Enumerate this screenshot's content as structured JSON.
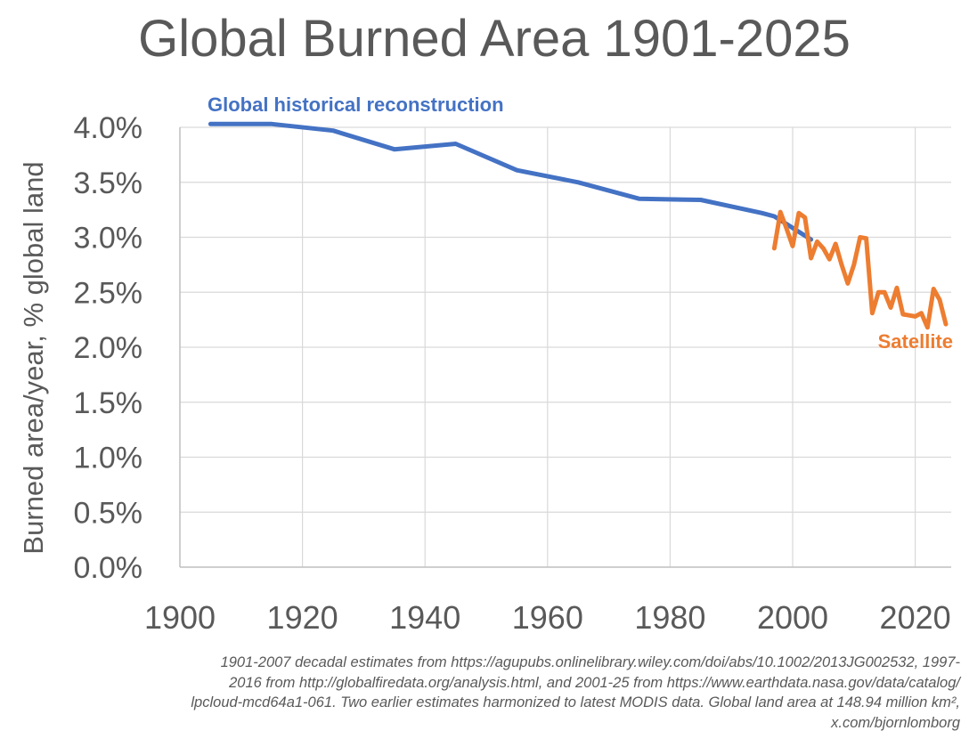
{
  "chart_data": {
    "type": "line",
    "title": "Global Burned Area 1901-2025",
    "xlabel": "",
    "ylabel": "Burned area/year, % global land",
    "xlim": [
      1900,
      2026
    ],
    "ylim": [
      0,
      4
    ],
    "x_ticks": [
      1900,
      1920,
      1940,
      1960,
      1980,
      2000,
      2020
    ],
    "y_ticks": [
      "0.0%",
      "0.5%",
      "1.0%",
      "1.5%",
      "2.0%",
      "2.5%",
      "3.0%",
      "3.5%",
      "4.0%"
    ],
    "y_tick_values": [
      0,
      0.5,
      1.0,
      1.5,
      2.0,
      2.5,
      3.0,
      3.5,
      4.0
    ],
    "grid": true,
    "series": [
      {
        "name": "Global historical reconstruction",
        "color": "#4472c4",
        "x": [
          1905,
          1915,
          1925,
          1935,
          1945,
          1955,
          1965,
          1975,
          1985,
          1995,
          1997,
          2003
        ],
        "values": [
          4.03,
          4.03,
          3.97,
          3.8,
          3.85,
          3.61,
          3.5,
          3.35,
          3.34,
          3.22,
          3.19,
          2.98
        ]
      },
      {
        "name": "Satellite",
        "color": "#ed7d31",
        "x": [
          1997,
          1998,
          1999,
          2000,
          2001,
          2002,
          2003,
          2004,
          2005,
          2006,
          2007,
          2008,
          2009,
          2010,
          2011,
          2012,
          2013,
          2014,
          2015,
          2016,
          2017,
          2018,
          2019,
          2020,
          2021,
          2022,
          2023,
          2024,
          2025
        ],
        "values": [
          2.9,
          3.23,
          3.08,
          2.92,
          3.22,
          3.18,
          2.81,
          2.96,
          2.9,
          2.8,
          2.94,
          2.75,
          2.58,
          2.75,
          3.0,
          2.99,
          2.31,
          2.5,
          2.5,
          2.36,
          2.54,
          2.3,
          2.29,
          2.28,
          2.31,
          2.18,
          2.53,
          2.43,
          2.21
        ]
      }
    ],
    "annotations": [
      {
        "text": "Global historical reconstruction",
        "series": 0
      },
      {
        "text": "Satellite",
        "series": 1
      }
    ]
  },
  "footnote": {
    "lines": [
      "1901-2007 decadal estimates from https://agupubs.onlinelibrary.wiley.com/doi/abs/10.1002/2013JG002532, 1997-",
      "2016 from http://globalfiredata.org/analysis.html, and 2001-25 from https://www.earthdata.nasa.gov/data/catalog/",
      "lpcloud-mcd64a1-061. Two earlier estimates harmonized to latest MODIS data. Global land area at 148.94 million km², ",
      "x.com/bjornlomborg"
    ]
  }
}
